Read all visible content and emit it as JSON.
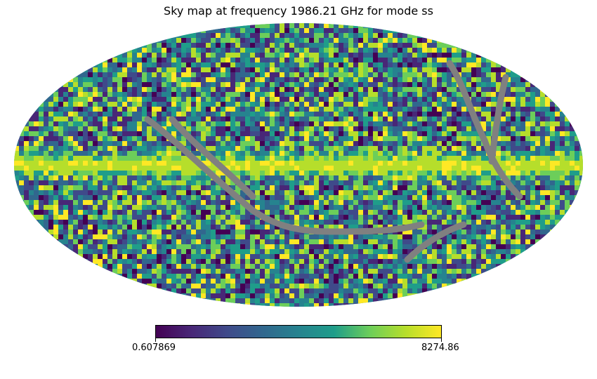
{
  "chart_data": {
    "type": "heatmap",
    "projection": "mollweide",
    "title": "Sky map at frequency 1986.21 GHz for mode ss",
    "colormap": "viridis",
    "colorbar": {
      "min_label": "0.607869",
      "max_label": "8274.86",
      "min": 0.607869,
      "max": 8274.86,
      "orientation": "horizontal"
    },
    "bad_value_color": "#808080",
    "colormap_stops": [
      "#440154",
      "#482777",
      "#3f4a8a",
      "#31678e",
      "#26838f",
      "#1f9d8a",
      "#6cce5a",
      "#b6de2b",
      "#fee825"
    ],
    "description_tokens": [
      "galactic-plane-band-high",
      "masked-scan-stripes"
    ]
  }
}
